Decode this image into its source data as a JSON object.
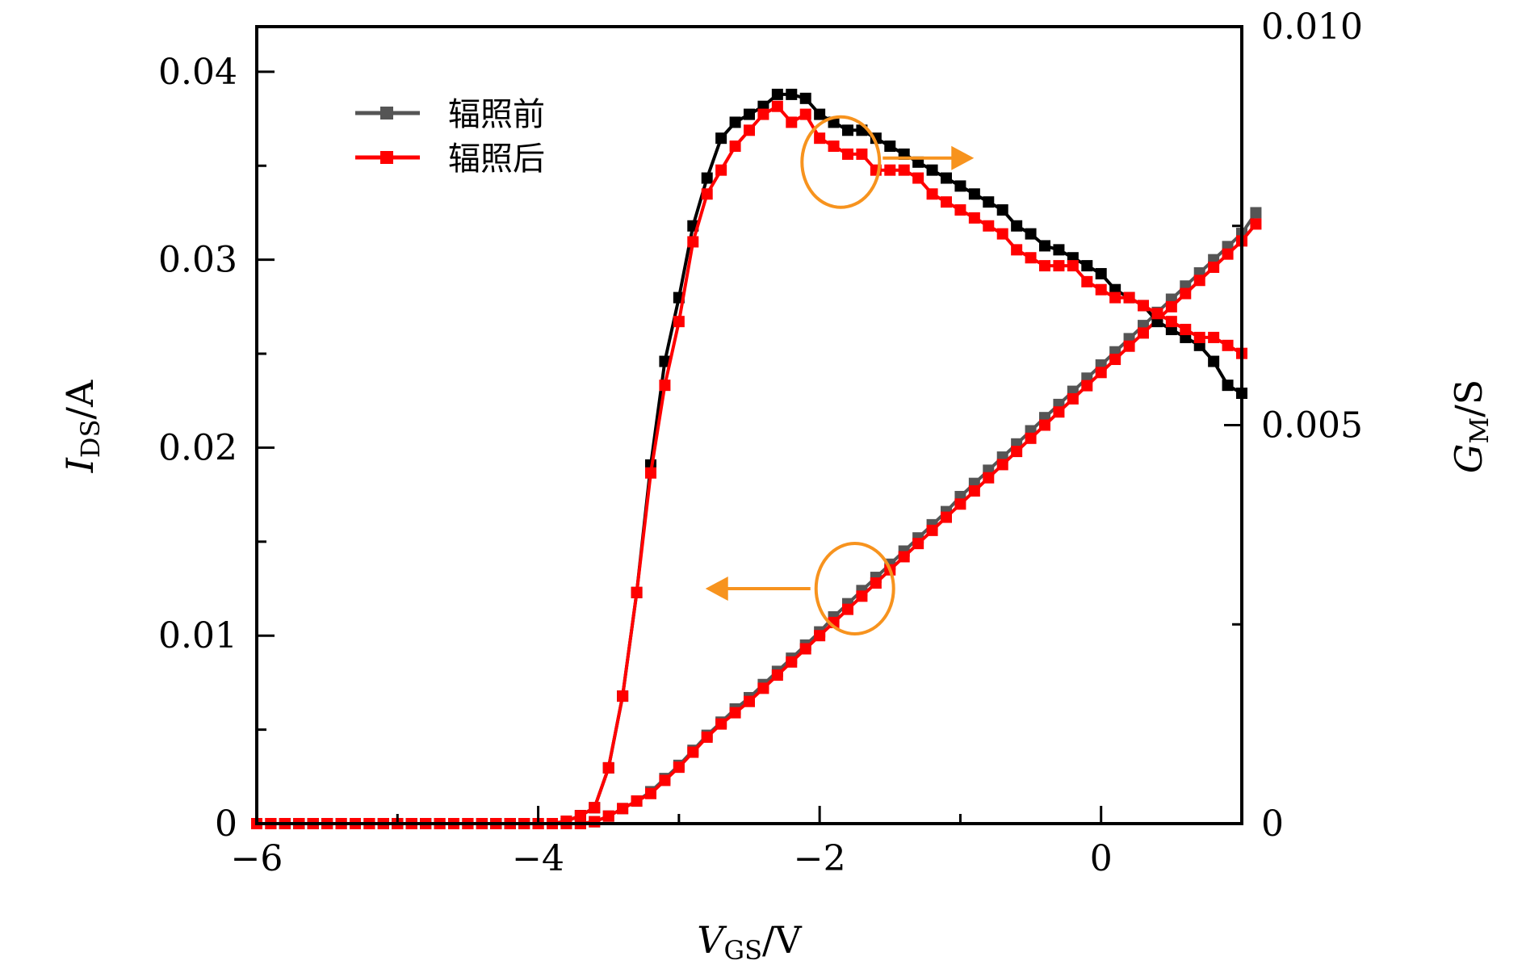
{
  "chart_data": {
    "type": "line",
    "title": "",
    "xlabel": {
      "main": "V",
      "sub": "GS",
      "unit": "/V"
    },
    "ylabel_left": {
      "main": "I",
      "sub": "DS",
      "unit": "/A"
    },
    "ylabel_right": {
      "main": "G",
      "sub": "M",
      "unit": "/S"
    },
    "xlim": [
      -6,
      1
    ],
    "ylim_left": [
      0,
      0.0424
    ],
    "ylim_right": [
      0,
      0.01
    ],
    "x_ticks": [
      -6,
      -4,
      -2,
      0
    ],
    "x_tick_labels": [
      "−6",
      "−4",
      "−2",
      "0"
    ],
    "x_minor_ticks": [
      -5,
      -3,
      -1
    ],
    "y_left_ticks": [
      0,
      0.01,
      0.02,
      0.03,
      0.04
    ],
    "y_left_tick_labels": [
      "0",
      "0.01",
      "0.02",
      "0.03",
      "0.04"
    ],
    "y_left_minor_ticks": [
      0.005,
      0.015,
      0.025,
      0.035
    ],
    "y_right_ticks": [
      0,
      0.005,
      0.01
    ],
    "y_right_tick_labels": [
      "0",
      "0.005",
      "0.010"
    ],
    "y_right_minor_ticks": [
      0.0025,
      0.0075
    ],
    "grid": false,
    "legend": {
      "placement": "top-left",
      "entries": [
        {
          "label": "辐照前",
          "color": "#555555"
        },
        {
          "label": "辐照后",
          "color": "#ff0000"
        }
      ]
    },
    "x_start": -6,
    "x_step": 0.1,
    "series": [
      {
        "name": "辐照前 I_DS",
        "axis": "left",
        "line_color": "#555555",
        "marker_color": "#555555",
        "values": [
          0,
          0,
          0,
          0,
          0,
          0,
          0,
          0,
          0,
          0,
          0,
          0,
          0,
          0,
          0,
          0,
          0,
          0,
          0,
          0,
          0,
          0,
          0,
          0,
          0.0001,
          0.0004,
          0.0008,
          0.0012,
          0.0017,
          0.0024,
          0.0031,
          0.0039,
          0.0047,
          0.0054,
          0.0061,
          0.0067,
          0.0074,
          0.0081,
          0.0088,
          0.0095,
          0.0102,
          0.011,
          0.0117,
          0.0124,
          0.0131,
          0.0138,
          0.0145,
          0.0152,
          0.0159,
          0.0166,
          0.0174,
          0.0181,
          0.0188,
          0.0195,
          0.0202,
          0.0209,
          0.0216,
          0.0223,
          0.023,
          0.0237,
          0.0244,
          0.0251,
          0.0258,
          0.0265,
          0.0272,
          0.0279,
          0.0286,
          0.0293,
          0.03,
          0.0307,
          0.0314,
          0.0325
        ]
      },
      {
        "name": "辐照后 I_DS",
        "axis": "left",
        "line_color": "#ff0000",
        "marker_color": "#ff0000",
        "values": [
          0,
          0,
          0,
          0,
          0,
          0,
          0,
          0,
          0,
          0,
          0,
          0,
          0,
          0,
          0,
          0,
          0,
          0,
          0,
          0,
          0,
          0,
          0,
          0,
          0.0001,
          0.0004,
          0.0008,
          0.0012,
          0.0016,
          0.0023,
          0.003,
          0.0038,
          0.0046,
          0.0053,
          0.0059,
          0.0065,
          0.0072,
          0.0079,
          0.0086,
          0.0093,
          0.01,
          0.0107,
          0.0114,
          0.0121,
          0.0128,
          0.0135,
          0.0142,
          0.0149,
          0.0156,
          0.0163,
          0.017,
          0.0177,
          0.0184,
          0.0191,
          0.0198,
          0.0205,
          0.0212,
          0.0219,
          0.0226,
          0.0233,
          0.024,
          0.0247,
          0.0254,
          0.0261,
          0.0268,
          0.0275,
          0.0282,
          0.0289,
          0.0296,
          0.0303,
          0.031,
          0.0319
        ]
      },
      {
        "name": "辐照前 G_M",
        "axis": "right",
        "line_color": "#000000",
        "marker_color": "#000000",
        "values": [
          0,
          0,
          0,
          0,
          0,
          0,
          0,
          0,
          0,
          0,
          0,
          0,
          0,
          0,
          0,
          0,
          0,
          0,
          0,
          0,
          0,
          0,
          3e-05,
          0.0001,
          0.0002,
          0.0007,
          0.0016,
          0.0029,
          0.0045,
          0.0058,
          0.0066,
          0.0075,
          0.0081,
          0.0086,
          0.0088,
          0.0089,
          0.009,
          0.00915,
          0.00915,
          0.0091,
          0.0089,
          0.0088,
          0.0087,
          0.0087,
          0.0086,
          0.0085,
          0.0084,
          0.0083,
          0.0082,
          0.0081,
          0.008,
          0.0079,
          0.0078,
          0.0077,
          0.0075,
          0.0074,
          0.00725,
          0.0072,
          0.0071,
          0.007,
          0.0069,
          0.0067,
          0.0066,
          0.0065,
          0.0063,
          0.0062,
          0.0061,
          0.006,
          0.0058,
          0.0055,
          0.0054
        ]
      },
      {
        "name": "辐照后 G_M",
        "axis": "right",
        "line_color": "#ff0000",
        "marker_color": "#ff0000",
        "values": [
          0,
          0,
          0,
          0,
          0,
          0,
          0,
          0,
          0,
          0,
          0,
          0,
          0,
          0,
          0,
          0,
          0,
          0,
          0,
          0,
          0,
          0,
          3e-05,
          0.0001,
          0.0002,
          0.0007,
          0.0016,
          0.0029,
          0.0044,
          0.0055,
          0.0063,
          0.0073,
          0.0079,
          0.0082,
          0.0085,
          0.0087,
          0.0089,
          0.009,
          0.0088,
          0.0089,
          0.0086,
          0.0085,
          0.0084,
          0.0084,
          0.0082,
          0.0082,
          0.0082,
          0.0081,
          0.0079,
          0.0078,
          0.0077,
          0.0076,
          0.0075,
          0.0074,
          0.0072,
          0.0071,
          0.007,
          0.007,
          0.007,
          0.0068,
          0.0067,
          0.0066,
          0.0066,
          0.0065,
          0.0064,
          0.0063,
          0.0062,
          0.0061,
          0.0061,
          0.006,
          0.0059
        ]
      }
    ],
    "annotations": [
      {
        "type": "ellipse",
        "color": "#f7931e",
        "around": {
          "x": -1.85,
          "y_right": 0.0083
        },
        "meaning": "G_M curves",
        "arrow_direction": "right",
        "arrow_points_to": "right-axis"
      },
      {
        "type": "ellipse",
        "color": "#f7931e",
        "around": {
          "x": -1.75,
          "y_left": 0.0125
        },
        "meaning": "I_DS curves",
        "arrow_direction": "left",
        "arrow_points_to": "left-axis"
      }
    ]
  }
}
